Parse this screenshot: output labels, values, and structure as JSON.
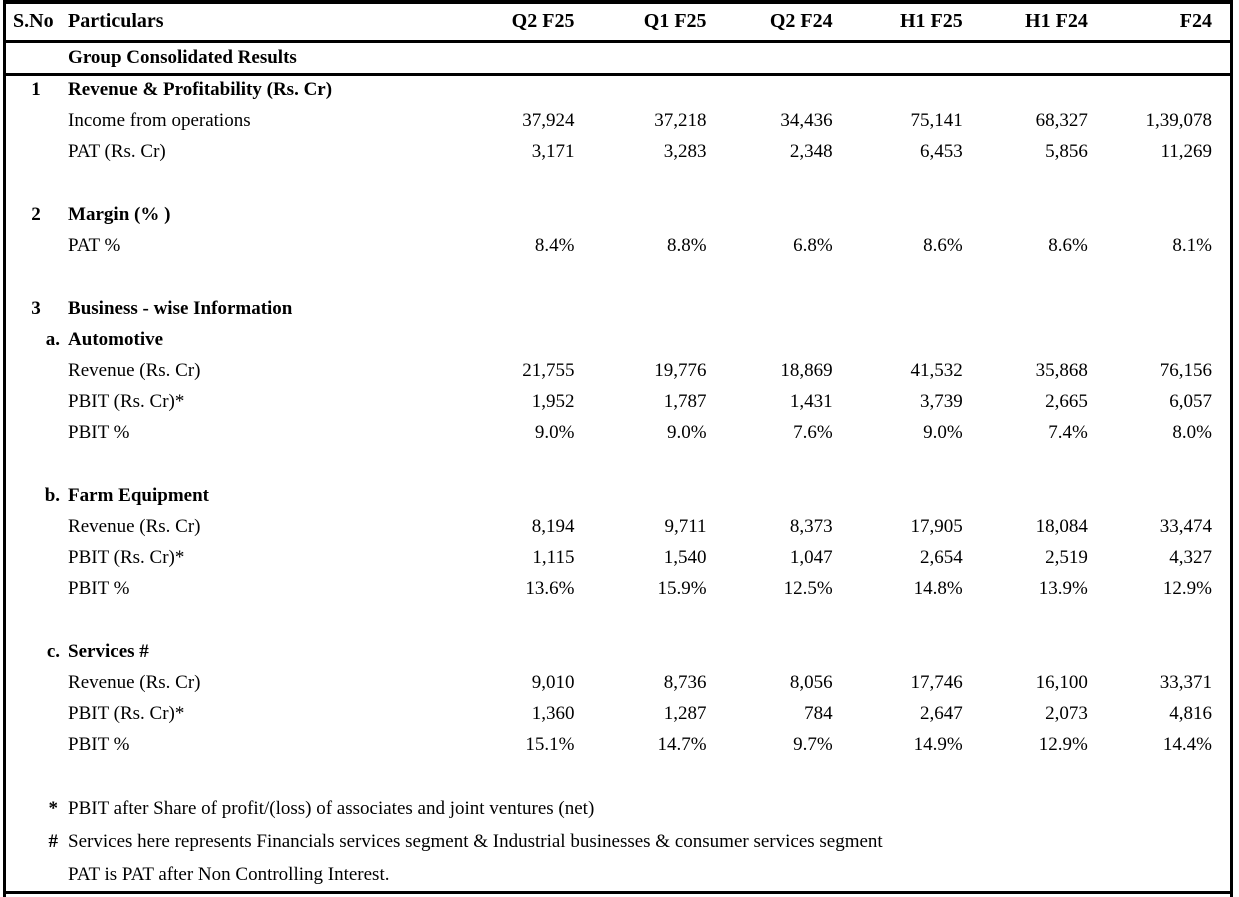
{
  "table": {
    "columns": [
      "S.No",
      "Particulars",
      "Q2 F25",
      "Q1 F25",
      "Q2 F24",
      "H1 F25",
      "H1 F24",
      "F24"
    ],
    "group_header": "Group Consolidated Results",
    "rows": [
      {
        "type": "section",
        "sno": "1",
        "label": "Revenue & Profitability (Rs. Cr)"
      },
      {
        "type": "data",
        "label": "Income from operations",
        "values": [
          "37,924",
          "37,218",
          "34,436",
          "75,141",
          "68,327",
          "1,39,078"
        ]
      },
      {
        "type": "data",
        "label": "PAT (Rs. Cr)",
        "values": [
          "3,171",
          "3,283",
          "2,348",
          "6,453",
          "5,856",
          "11,269"
        ]
      },
      {
        "type": "blank"
      },
      {
        "type": "section",
        "sno": "2",
        "label": "Margin (% )"
      },
      {
        "type": "data",
        "label": "PAT %",
        "values": [
          "8.4%",
          "8.8%",
          "6.8%",
          "8.6%",
          "8.6%",
          "8.1%"
        ]
      },
      {
        "type": "blank"
      },
      {
        "type": "section",
        "sno": "3",
        "label": "Business - wise Information"
      },
      {
        "type": "subsection",
        "sno": "a.",
        "label": "Automotive"
      },
      {
        "type": "data",
        "label": "Revenue (Rs. Cr)",
        "values": [
          "21,755",
          "19,776",
          "18,869",
          "41,532",
          "35,868",
          "76,156"
        ]
      },
      {
        "type": "data",
        "label": "PBIT (Rs. Cr)*",
        "values": [
          "1,952",
          "1,787",
          "1,431",
          "3,739",
          "2,665",
          "6,057"
        ]
      },
      {
        "type": "data",
        "label": "PBIT %",
        "values": [
          "9.0%",
          "9.0%",
          "7.6%",
          "9.0%",
          "7.4%",
          "8.0%"
        ]
      },
      {
        "type": "blank"
      },
      {
        "type": "subsection",
        "sno": "b.",
        "label": "Farm Equipment"
      },
      {
        "type": "data",
        "label": "Revenue (Rs. Cr)",
        "values": [
          "8,194",
          "9,711",
          "8,373",
          "17,905",
          "18,084",
          "33,474"
        ]
      },
      {
        "type": "data",
        "label": "PBIT (Rs. Cr)*",
        "values": [
          "1,115",
          "1,540",
          "1,047",
          "2,654",
          "2,519",
          "4,327"
        ]
      },
      {
        "type": "data",
        "label": "PBIT %",
        "values": [
          "13.6%",
          "15.9%",
          "12.5%",
          "14.8%",
          "13.9%",
          "12.9%"
        ]
      },
      {
        "type": "blank"
      },
      {
        "type": "subsection",
        "sno": "c.",
        "label": "Services #"
      },
      {
        "type": "data",
        "label": "Revenue (Rs. Cr)",
        "values": [
          "9,010",
          "8,736",
          "8,056",
          "17,746",
          "16,100",
          "33,371"
        ]
      },
      {
        "type": "data",
        "label": "PBIT (Rs. Cr)*",
        "values": [
          "1,360",
          "1,287",
          "784",
          "2,647",
          "2,073",
          "4,816"
        ]
      },
      {
        "type": "data",
        "label": "PBIT %",
        "values": [
          "15.1%",
          "14.7%",
          "9.7%",
          "14.9%",
          "12.9%",
          "14.4%"
        ]
      },
      {
        "type": "blank"
      },
      {
        "type": "footnote",
        "marker": "*",
        "text": "PBIT after Share of profit/(loss) of associates and joint ventures (net)"
      },
      {
        "type": "footnote",
        "marker": "#",
        "text": "Services here represents Financials services segment & Industrial businesses & consumer services segment"
      },
      {
        "type": "footnote",
        "marker": "",
        "text": "PAT is PAT after Non Controlling Interest."
      }
    ]
  }
}
